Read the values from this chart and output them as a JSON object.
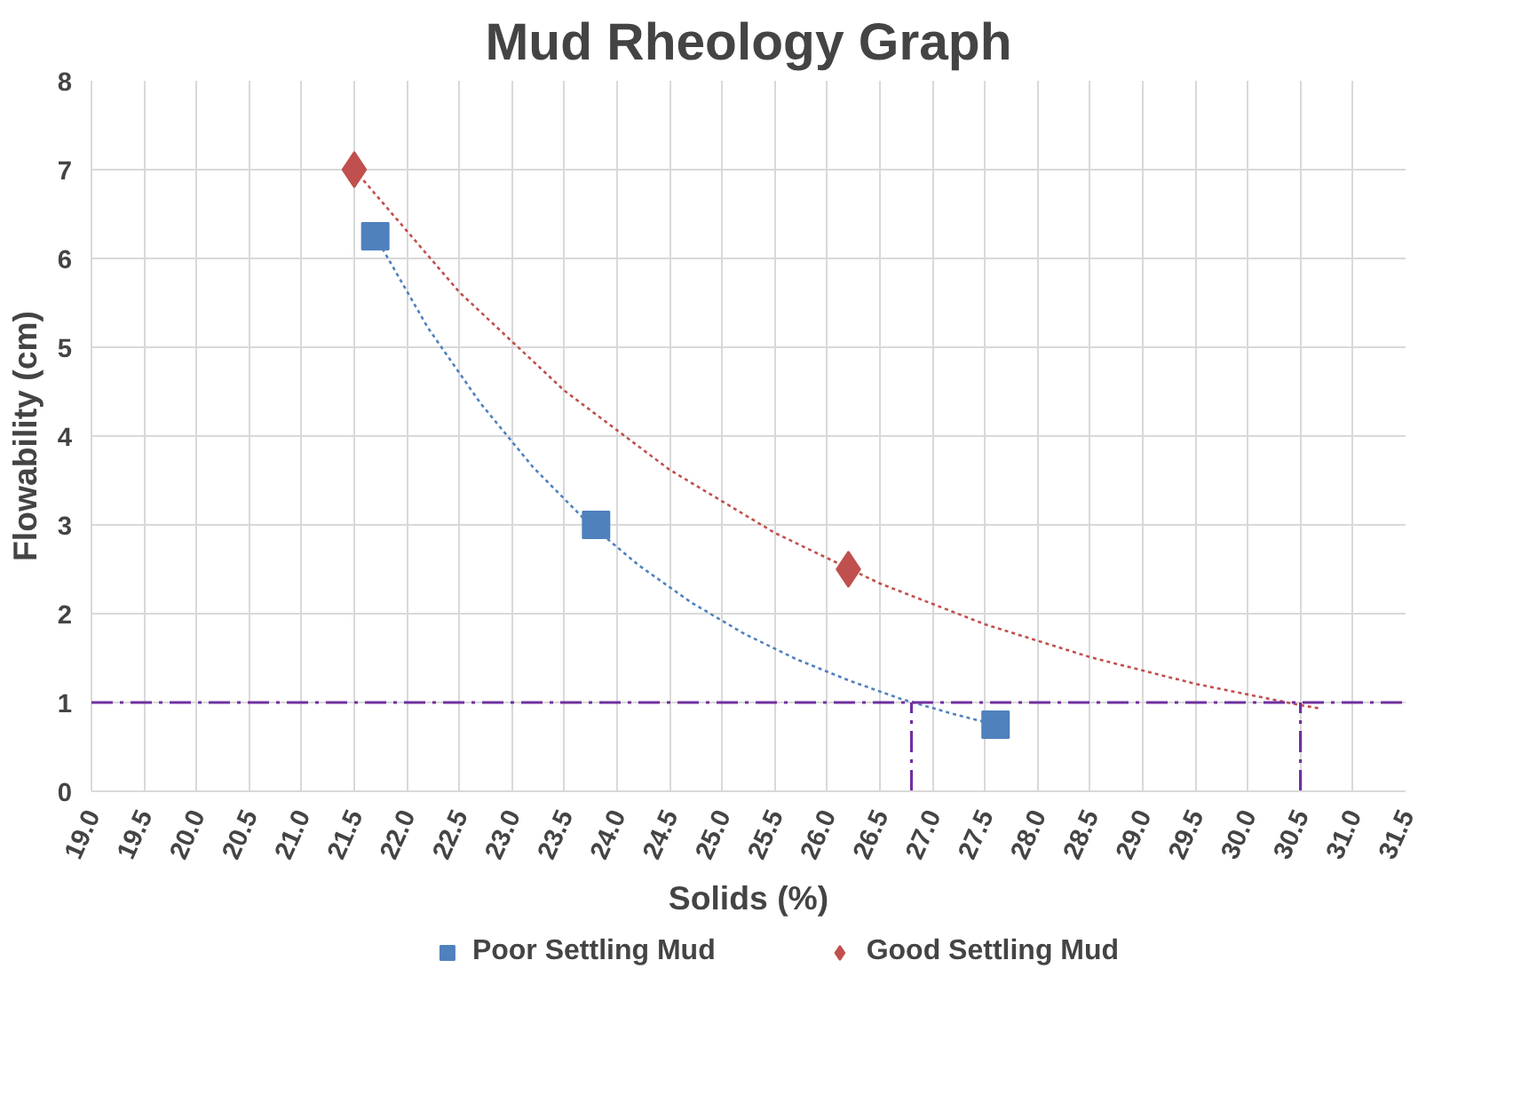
{
  "chart_data": {
    "type": "scatter",
    "title": "Mud Rheology Graph",
    "xlabel": "Solids (%)",
    "ylabel": "Flowability (cm)",
    "xlim": [
      19,
      31.5
    ],
    "ylim": [
      0,
      8
    ],
    "xticks": [
      {
        "value": 19,
        "label": "19.0"
      },
      19.5,
      {
        "value": 20,
        "label": "20.0"
      },
      20.5,
      {
        "value": 21,
        "label": "21.0"
      },
      21.5,
      {
        "value": 22,
        "label": "22.0"
      },
      22.5,
      {
        "value": 23,
        "label": "23.0"
      },
      23.5,
      {
        "value": 24,
        "label": "24.0"
      },
      24.5,
      {
        "value": 25,
        "label": "25.0"
      },
      25.5,
      {
        "value": 26,
        "label": "26.0"
      },
      26.5,
      {
        "value": 27,
        "label": "27.0"
      },
      27.5,
      {
        "value": 28,
        "label": "28.0"
      },
      28.5,
      {
        "value": 29,
        "label": "29.0"
      },
      29.5,
      {
        "value": 30,
        "label": "30.0"
      },
      30.5,
      {
        "value": 31,
        "label": "31.0"
      },
      31.5
    ],
    "yticks": [
      0,
      1,
      2,
      3,
      4,
      5,
      6,
      7,
      8
    ],
    "grid": true,
    "legend": "bottom",
    "series": [
      {
        "name": "Poor Settling Mud",
        "color": "#4f81bd",
        "marker": "square",
        "x": [
          21.7,
          23.8,
          27.6
        ],
        "values": [
          6.25,
          3,
          0.75
        ]
      },
      {
        "name": "Good Settling Mud",
        "color": "#c0504d",
        "marker": "diamond",
        "x": [
          21.5,
          26.2
        ],
        "values": [
          7,
          2.5
        ]
      },
      {
        "type": "line",
        "color": "#4f81bd",
        "line_style": "dotted",
        "x": [
          21.7,
          22.2,
          22.7,
          23.2,
          23.7,
          24.2,
          24.7,
          25.2,
          25.7,
          26.2,
          26.7,
          27.2,
          27.6
        ],
        "values": [
          6.25,
          5.22,
          4.37,
          3.65,
          3.05,
          2.55,
          2.13,
          1.78,
          1.49,
          1.25,
          1.04,
          0.87,
          0.75
        ]
      },
      {
        "type": "line",
        "color": "#c0504d",
        "line_style": "dotted",
        "x": [
          21.5,
          22.5,
          23.5,
          24.5,
          25.5,
          26.5,
          27.5,
          28.5,
          29.5,
          30.5,
          30.7
        ],
        "values": [
          7,
          5.62,
          4.51,
          3.62,
          2.91,
          2.34,
          1.88,
          1.51,
          1.21,
          0.97,
          0.93
        ]
      },
      {
        "type": "line",
        "color": "#7030a0",
        "line_style": "dashed",
        "x": [
          26.8,
          26.8
        ],
        "values": [
          0,
          1
        ]
      },
      {
        "type": "line",
        "color": "#7030a0",
        "line_style": "dashed",
        "x": [
          30.5,
          30.5
        ],
        "values": [
          0,
          1
        ]
      }
    ],
    "ref_lines": [
      {
        "axis": "y",
        "value": 1,
        "color": "#7030a0",
        "line_style": "dashed"
      }
    ]
  }
}
